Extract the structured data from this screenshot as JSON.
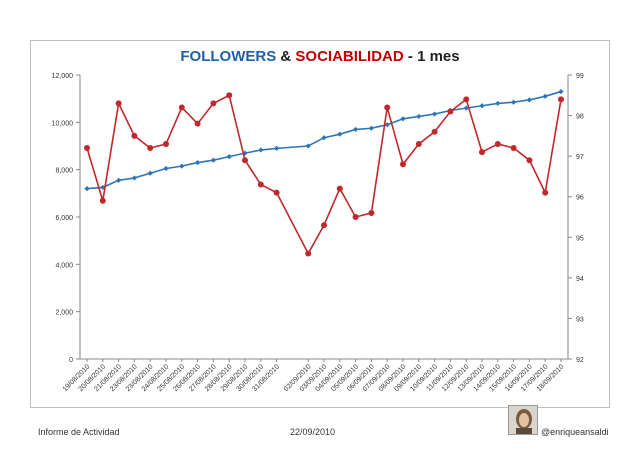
{
  "chart_data": {
    "type": "line",
    "title": {
      "part1": "FOLLOWERS",
      "sep": "&",
      "part2": "SOCIABILIDAD",
      "suffix": "- 1 mes"
    },
    "categories": [
      "19/08/2010",
      "20/08/2010",
      "21/08/2010",
      "23/08/2010",
      "23/08/2010",
      "24/08/2010",
      "25/08/2010",
      "26/08/2010",
      "27/08/2010",
      "28/08/2010",
      "29/08/2010",
      "30/08/2010",
      "31/08/2010",
      "02/09/2010",
      "03/09/2010",
      "04/09/2010",
      "05/09/2010",
      "06/09/2010",
      "07/09/2010",
      "08/09/2010",
      "09/09/2010",
      "10/09/2010",
      "11/09/2010",
      "12/09/2010",
      "13/09/2010",
      "14/09/2010",
      "15/09/2010",
      "16/09/2010",
      "17/09/2010",
      "18/09/2010"
    ],
    "x_positions": [
      0,
      1,
      2,
      3,
      4,
      5,
      6,
      7,
      8,
      9,
      10,
      11,
      12,
      14,
      15,
      16,
      17,
      18,
      19,
      20,
      21,
      22,
      23,
      24,
      25,
      26,
      27,
      28,
      29,
      30
    ],
    "series": [
      {
        "axis": "left",
        "color": "#2e75b6",
        "values": [
          7200,
          7250,
          7550,
          7650,
          7850,
          8050,
          8150,
          8300,
          8400,
          8550,
          8700,
          8830,
          8900,
          9000,
          9350,
          9500,
          9700,
          9750,
          9900,
          10150,
          10250,
          10350,
          10500,
          10600,
          10700,
          10800,
          10850,
          10950,
          11100,
          11300
        ]
      },
      {
        "axis": "right",
        "color": "#c0282d",
        "values": [
          97.2,
          95.9,
          98.3,
          97.5,
          97.2,
          97.3,
          98.2,
          97.8,
          98.3,
          98.5,
          96.9,
          96.3,
          96.1,
          94.6,
          95.3,
          96.2,
          95.5,
          95.6,
          98.2,
          96.8,
          97.3,
          97.6,
          98.1,
          98.4,
          97.1,
          97.3,
          97.2,
          96.9,
          96.1,
          98.4
        ]
      }
    ],
    "y_left": {
      "min": 0,
      "max": 12000,
      "ticks": [
        "0",
        "2,000",
        "4,000",
        "6,000",
        "8,000",
        "10,000",
        "12,000"
      ]
    },
    "y_right": {
      "min": 92,
      "max": 99,
      "ticks": [
        "92",
        "93",
        "94",
        "95",
        "96",
        "97",
        "98",
        "99"
      ]
    },
    "grid": false,
    "legend": "none"
  },
  "footer": {
    "left": "Informe de Actividad",
    "date": "22/09/2010",
    "handle": "@enriqueansaldi"
  }
}
